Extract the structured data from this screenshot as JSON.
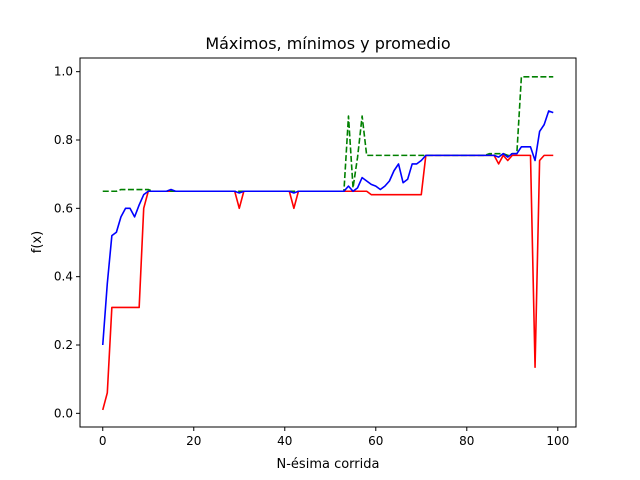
{
  "chart_data": {
    "type": "line",
    "title": "Máximos, mínimos y promedio",
    "xlabel": "N-ésima corrida",
    "ylabel": "f(x)",
    "xlim": [
      -5,
      104
    ],
    "ylim": [
      -0.04,
      1.04
    ],
    "xticks": [
      0,
      20,
      40,
      60,
      80,
      100
    ],
    "xtick_labels": [
      "0",
      "20",
      "40",
      "60",
      "80",
      "100"
    ],
    "yticks": [
      0.0,
      0.2,
      0.4,
      0.6,
      0.8,
      1.0
    ],
    "ytick_labels": [
      "0.0",
      "0.2",
      "0.4",
      "0.6",
      "0.8",
      "1.0"
    ],
    "grid": false,
    "x": [
      0,
      1,
      2,
      3,
      4,
      5,
      6,
      7,
      8,
      9,
      10,
      11,
      12,
      13,
      14,
      15,
      16,
      17,
      18,
      19,
      20,
      21,
      22,
      23,
      24,
      25,
      26,
      27,
      28,
      29,
      30,
      31,
      32,
      33,
      34,
      35,
      36,
      37,
      38,
      39,
      40,
      41,
      42,
      43,
      44,
      45,
      46,
      47,
      48,
      49,
      50,
      51,
      52,
      53,
      54,
      55,
      56,
      57,
      58,
      59,
      60,
      61,
      62,
      63,
      64,
      65,
      66,
      67,
      68,
      69,
      70,
      71,
      72,
      73,
      74,
      75,
      76,
      77,
      78,
      79,
      80,
      81,
      82,
      83,
      84,
      85,
      86,
      87,
      88,
      89,
      90,
      91,
      92,
      93,
      94,
      95,
      96,
      97,
      98,
      99
    ],
    "series": [
      {
        "color": "#ff0000",
        "dash": "solid",
        "values": [
          0.01,
          0.06,
          0.31,
          0.31,
          0.31,
          0.31,
          0.31,
          0.31,
          0.31,
          0.6,
          0.65,
          0.65,
          0.65,
          0.65,
          0.65,
          0.65,
          0.65,
          0.65,
          0.65,
          0.65,
          0.65,
          0.65,
          0.65,
          0.65,
          0.65,
          0.65,
          0.65,
          0.65,
          0.65,
          0.65,
          0.6,
          0.65,
          0.65,
          0.65,
          0.65,
          0.65,
          0.65,
          0.65,
          0.65,
          0.65,
          0.65,
          0.65,
          0.6,
          0.65,
          0.65,
          0.65,
          0.65,
          0.65,
          0.65,
          0.65,
          0.65,
          0.65,
          0.65,
          0.65,
          0.65,
          0.65,
          0.65,
          0.65,
          0.65,
          0.64,
          0.64,
          0.64,
          0.64,
          0.64,
          0.64,
          0.64,
          0.64,
          0.64,
          0.64,
          0.64,
          0.64,
          0.755,
          0.755,
          0.755,
          0.755,
          0.755,
          0.755,
          0.755,
          0.755,
          0.755,
          0.755,
          0.755,
          0.755,
          0.755,
          0.755,
          0.755,
          0.755,
          0.73,
          0.755,
          0.74,
          0.755,
          0.755,
          0.755,
          0.755,
          0.755,
          0.135,
          0.74,
          0.755,
          0.755,
          0.755
        ]
      },
      {
        "color": "#008000",
        "dash": "dashed",
        "values": [
          0.65,
          0.65,
          0.65,
          0.65,
          0.655,
          0.655,
          0.655,
          0.655,
          0.655,
          0.655,
          0.655,
          0.65,
          0.65,
          0.65,
          0.65,
          0.65,
          0.65,
          0.65,
          0.65,
          0.65,
          0.65,
          0.65,
          0.65,
          0.65,
          0.65,
          0.65,
          0.65,
          0.65,
          0.65,
          0.65,
          0.65,
          0.65,
          0.65,
          0.65,
          0.65,
          0.65,
          0.65,
          0.65,
          0.65,
          0.65,
          0.65,
          0.65,
          0.65,
          0.65,
          0.65,
          0.65,
          0.65,
          0.65,
          0.65,
          0.65,
          0.65,
          0.65,
          0.65,
          0.65,
          0.87,
          0.66,
          0.75,
          0.87,
          0.755,
          0.755,
          0.755,
          0.755,
          0.755,
          0.755,
          0.755,
          0.755,
          0.755,
          0.755,
          0.755,
          0.755,
          0.755,
          0.755,
          0.755,
          0.755,
          0.755,
          0.755,
          0.755,
          0.755,
          0.755,
          0.755,
          0.755,
          0.755,
          0.755,
          0.755,
          0.755,
          0.76,
          0.76,
          0.76,
          0.76,
          0.755,
          0.76,
          0.76,
          0.985,
          0.985,
          0.985,
          0.985,
          0.985,
          0.985,
          0.985,
          0.985
        ]
      },
      {
        "color": "#0000ff",
        "dash": "solid",
        "values": [
          0.2,
          0.38,
          0.52,
          0.53,
          0.575,
          0.6,
          0.6,
          0.575,
          0.61,
          0.64,
          0.65,
          0.65,
          0.65,
          0.65,
          0.65,
          0.655,
          0.65,
          0.65,
          0.65,
          0.65,
          0.65,
          0.65,
          0.65,
          0.65,
          0.65,
          0.65,
          0.65,
          0.65,
          0.65,
          0.65,
          0.645,
          0.65,
          0.65,
          0.65,
          0.65,
          0.65,
          0.65,
          0.65,
          0.65,
          0.65,
          0.65,
          0.65,
          0.645,
          0.65,
          0.65,
          0.65,
          0.65,
          0.65,
          0.65,
          0.65,
          0.65,
          0.65,
          0.65,
          0.65,
          0.665,
          0.65,
          0.66,
          0.69,
          0.68,
          0.67,
          0.665,
          0.655,
          0.665,
          0.68,
          0.71,
          0.73,
          0.675,
          0.685,
          0.73,
          0.73,
          0.74,
          0.755,
          0.755,
          0.755,
          0.755,
          0.755,
          0.755,
          0.755,
          0.755,
          0.755,
          0.755,
          0.755,
          0.755,
          0.755,
          0.755,
          0.755,
          0.755,
          0.75,
          0.76,
          0.75,
          0.76,
          0.76,
          0.78,
          0.78,
          0.78,
          0.74,
          0.825,
          0.845,
          0.885,
          0.88
        ]
      }
    ]
  }
}
